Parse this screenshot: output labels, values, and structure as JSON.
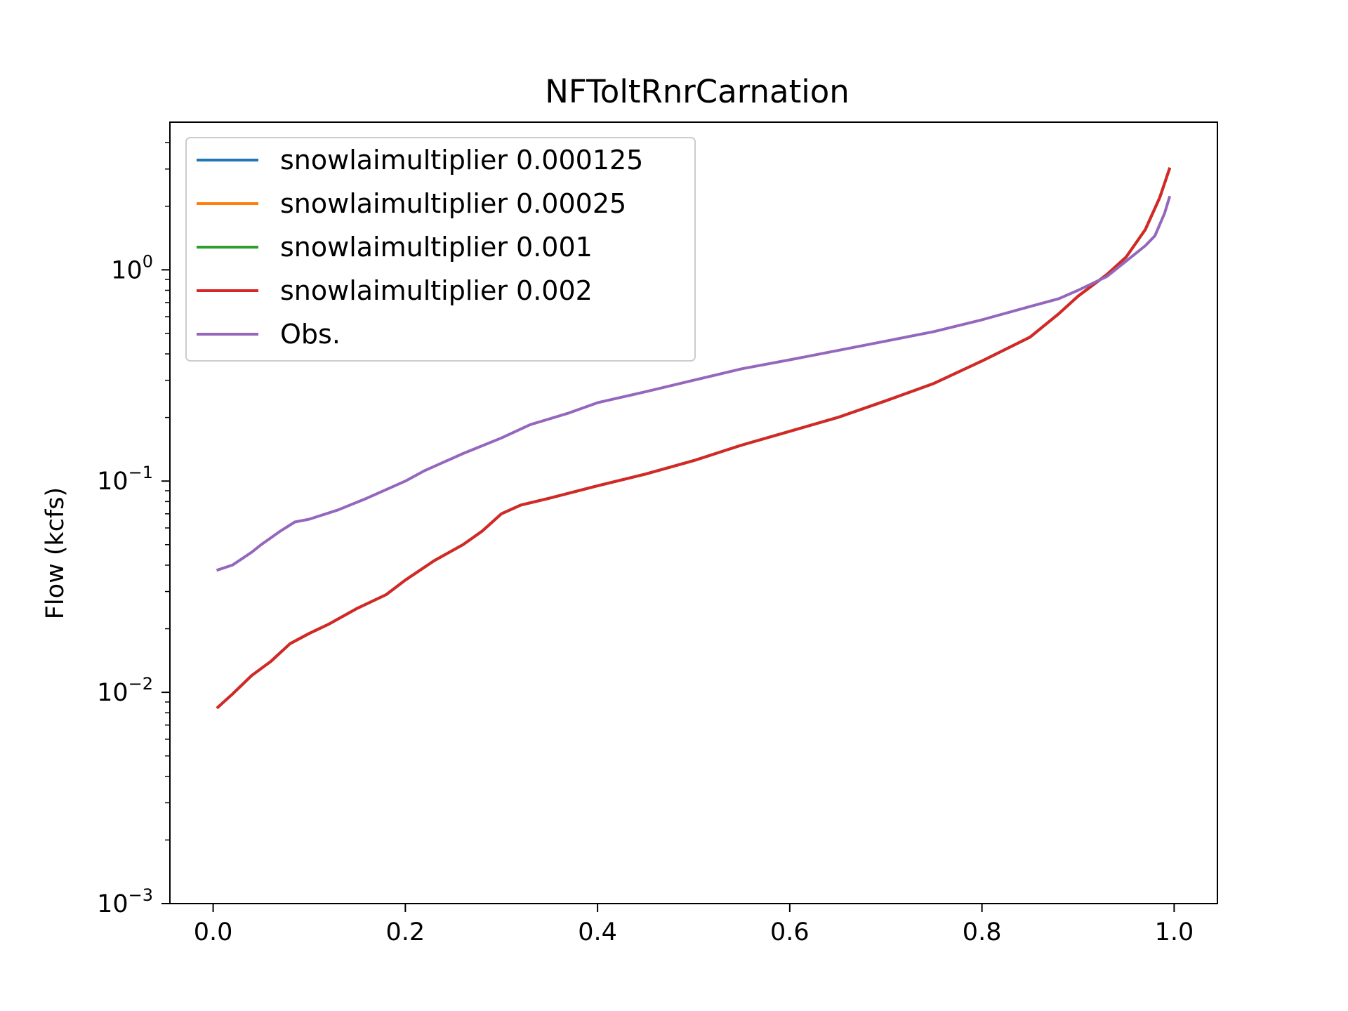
{
  "chart_data": {
    "type": "line",
    "title": "NFToltRnrCarnation",
    "xlabel": "",
    "ylabel": "Flow (kcfs)",
    "xlim": [
      -0.045,
      1.045
    ],
    "ylim": [
      0.001,
      5.0
    ],
    "yscale": "log",
    "grid": false,
    "legend_position": "upper-left",
    "x_ticks": [
      {
        "value": 0.0,
        "label": "0.0"
      },
      {
        "value": 0.2,
        "label": "0.2"
      },
      {
        "value": 0.4,
        "label": "0.4"
      },
      {
        "value": 0.6,
        "label": "0.6"
      },
      {
        "value": 0.8,
        "label": "0.8"
      },
      {
        "value": 1.0,
        "label": "1.0"
      }
    ],
    "y_ticks": [
      {
        "value": 0.001,
        "base": "10",
        "exp": "−3"
      },
      {
        "value": 0.01,
        "base": "10",
        "exp": "−2"
      },
      {
        "value": 0.1,
        "base": "10",
        "exp": "−1"
      },
      {
        "value": 1.0,
        "base": "10",
        "exp": "0"
      }
    ],
    "series": [
      {
        "name": "snowlaimultiplier 0.000125",
        "color": "#1f77b4",
        "x": [
          0.005,
          0.02,
          0.04,
          0.06,
          0.08,
          0.1,
          0.12,
          0.15,
          0.18,
          0.2,
          0.23,
          0.26,
          0.28,
          0.3,
          0.32,
          0.35,
          0.4,
          0.45,
          0.5,
          0.55,
          0.6,
          0.65,
          0.7,
          0.75,
          0.8,
          0.85,
          0.88,
          0.9,
          0.93,
          0.95,
          0.97,
          0.985,
          0.995
        ],
        "y": [
          0.0085,
          0.0098,
          0.012,
          0.014,
          0.017,
          0.019,
          0.021,
          0.025,
          0.029,
          0.034,
          0.042,
          0.05,
          0.058,
          0.07,
          0.077,
          0.083,
          0.095,
          0.108,
          0.125,
          0.148,
          0.172,
          0.2,
          0.24,
          0.29,
          0.37,
          0.48,
          0.62,
          0.75,
          0.95,
          1.15,
          1.55,
          2.2,
          3.0
        ]
      },
      {
        "name": "snowlaimultiplier 0.00025",
        "color": "#ff7f0e",
        "x": [
          0.005,
          0.02,
          0.04,
          0.06,
          0.08,
          0.1,
          0.12,
          0.15,
          0.18,
          0.2,
          0.23,
          0.26,
          0.28,
          0.3,
          0.32,
          0.35,
          0.4,
          0.45,
          0.5,
          0.55,
          0.6,
          0.65,
          0.7,
          0.75,
          0.8,
          0.85,
          0.88,
          0.9,
          0.93,
          0.95,
          0.97,
          0.985,
          0.995
        ],
        "y": [
          0.0085,
          0.0098,
          0.012,
          0.014,
          0.017,
          0.019,
          0.021,
          0.025,
          0.029,
          0.034,
          0.042,
          0.05,
          0.058,
          0.07,
          0.077,
          0.083,
          0.095,
          0.108,
          0.125,
          0.148,
          0.172,
          0.2,
          0.24,
          0.29,
          0.37,
          0.48,
          0.62,
          0.75,
          0.95,
          1.15,
          1.55,
          2.2,
          3.0
        ]
      },
      {
        "name": "snowlaimultiplier 0.001",
        "color": "#2ca02c",
        "x": [
          0.005,
          0.02,
          0.04,
          0.06,
          0.08,
          0.1,
          0.12,
          0.15,
          0.18,
          0.2,
          0.23,
          0.26,
          0.28,
          0.3,
          0.32,
          0.35,
          0.4,
          0.45,
          0.5,
          0.55,
          0.6,
          0.65,
          0.7,
          0.75,
          0.8,
          0.85,
          0.88,
          0.9,
          0.93,
          0.95,
          0.97,
          0.985,
          0.995
        ],
        "y": [
          0.0085,
          0.0098,
          0.012,
          0.014,
          0.017,
          0.019,
          0.021,
          0.025,
          0.029,
          0.034,
          0.042,
          0.05,
          0.058,
          0.07,
          0.077,
          0.083,
          0.095,
          0.108,
          0.125,
          0.148,
          0.172,
          0.2,
          0.24,
          0.29,
          0.37,
          0.48,
          0.62,
          0.75,
          0.95,
          1.15,
          1.55,
          2.2,
          3.0
        ]
      },
      {
        "name": "snowlaimultiplier 0.002",
        "color": "#d62728",
        "x": [
          0.005,
          0.02,
          0.04,
          0.06,
          0.08,
          0.1,
          0.12,
          0.15,
          0.18,
          0.2,
          0.23,
          0.26,
          0.28,
          0.3,
          0.32,
          0.35,
          0.4,
          0.45,
          0.5,
          0.55,
          0.6,
          0.65,
          0.7,
          0.75,
          0.8,
          0.85,
          0.88,
          0.9,
          0.93,
          0.95,
          0.97,
          0.985,
          0.995
        ],
        "y": [
          0.0085,
          0.0098,
          0.012,
          0.014,
          0.017,
          0.019,
          0.021,
          0.025,
          0.029,
          0.034,
          0.042,
          0.05,
          0.058,
          0.07,
          0.077,
          0.083,
          0.095,
          0.108,
          0.125,
          0.148,
          0.172,
          0.2,
          0.24,
          0.29,
          0.37,
          0.48,
          0.62,
          0.75,
          0.95,
          1.15,
          1.55,
          2.2,
          3.0
        ]
      },
      {
        "name": "Obs.",
        "color": "#9467bd",
        "x": [
          0.005,
          0.02,
          0.04,
          0.05,
          0.07,
          0.085,
          0.1,
          0.13,
          0.16,
          0.2,
          0.22,
          0.26,
          0.3,
          0.33,
          0.37,
          0.4,
          0.45,
          0.5,
          0.55,
          0.6,
          0.65,
          0.7,
          0.75,
          0.8,
          0.85,
          0.88,
          0.9,
          0.93,
          0.95,
          0.97,
          0.98,
          0.99,
          0.995
        ],
        "y": [
          0.038,
          0.04,
          0.046,
          0.05,
          0.058,
          0.064,
          0.066,
          0.073,
          0.083,
          0.1,
          0.112,
          0.135,
          0.16,
          0.185,
          0.21,
          0.235,
          0.265,
          0.3,
          0.34,
          0.375,
          0.415,
          0.46,
          0.51,
          0.58,
          0.67,
          0.73,
          0.8,
          0.93,
          1.1,
          1.3,
          1.45,
          1.85,
          2.2
        ]
      }
    ]
  }
}
